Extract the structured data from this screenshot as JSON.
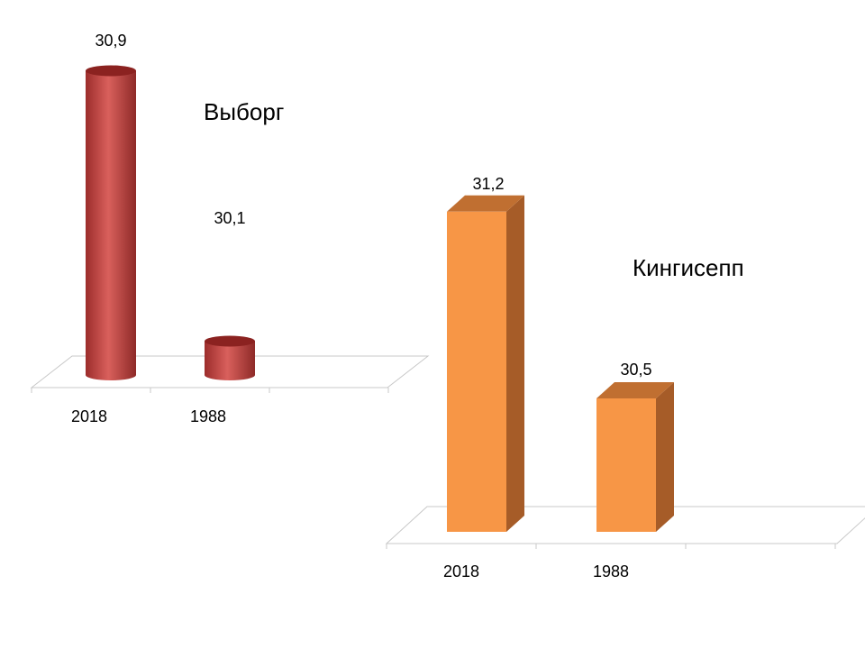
{
  "chart_data": [
    {
      "type": "bar",
      "title": "Выборг",
      "categories": [
        "2018",
        "1988"
      ],
      "values": [
        30.9,
        30.1
      ],
      "value_labels": [
        "30,9",
        "30,1"
      ],
      "bar_shape": "cylinder",
      "color": "#c0504d",
      "grid": false,
      "legend": "none"
    },
    {
      "type": "bar",
      "title": "Кингисепп",
      "categories": [
        "2018",
        "1988"
      ],
      "values": [
        31.2,
        30.5
      ],
      "value_labels": [
        "31,2",
        "30,5"
      ],
      "bar_shape": "box",
      "color": "#f79646",
      "grid": false,
      "legend": "none"
    }
  ]
}
